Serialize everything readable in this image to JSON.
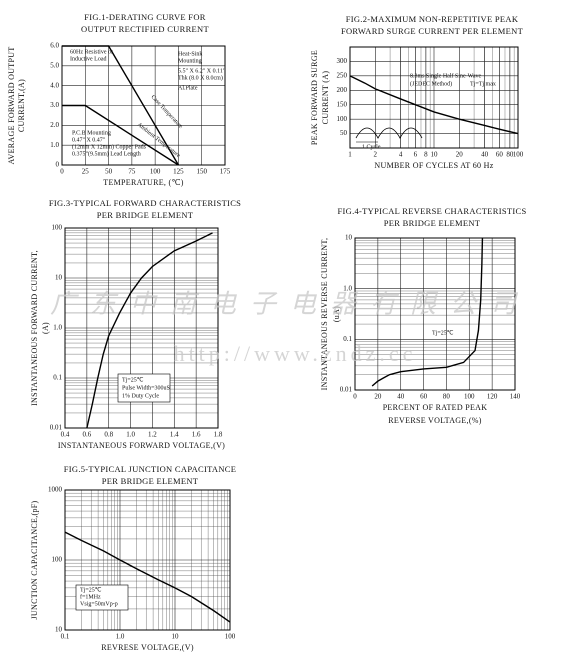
{
  "chart_data": [
    {
      "type": "line",
      "title": "FIG.1-DERATING CURVE FOR",
      "subtitle": "OUTPUT RECTIFIED CURRENT",
      "x_label": [
        "TEMPERATURE, (℃)"
      ],
      "y_label": [
        "AVERAGE FORWARD OUTPUT",
        "CURRENT,(A)"
      ],
      "xlim": [
        0,
        175
      ],
      "xticks": [
        0,
        25,
        50,
        75,
        100,
        125,
        150,
        175
      ],
      "ylim": [
        0,
        6
      ],
      "yticks": [
        0,
        {
          "value": 1,
          "label": "1.0"
        },
        {
          "value": 2,
          "label": "2.0"
        },
        {
          "value": 3,
          "label": "3.0"
        },
        {
          "value": 4,
          "label": "4.0"
        },
        {
          "value": 5,
          "label": "5.0"
        },
        {
          "value": 6,
          "label": "6.0"
        }
      ],
      "grid": true,
      "series": [
        {
          "color": "#000000",
          "x": [
            0,
            50,
            125
          ],
          "values": [
            6,
            6,
            0
          ]
        },
        {
          "color": "#000000",
          "x": [
            0,
            25,
            125
          ],
          "values": [
            3,
            3,
            0
          ]
        }
      ],
      "annotations": [
        "60Hz Resistive or",
        "Inductive Load",
        "Heat-Sink",
        "Mounting",
        "5.5\" X 6.2\" X 0.11\"",
        "Thk (8.0 X 8.0cm)",
        "Al.Plate",
        "Case Temperature",
        "Ambient Temperature",
        "P.C.B Mounting",
        "0.47\" X 0.47\"",
        "(12mm X 12mm) Copper Pads",
        "0.375\"(9.5mm) Lead Length"
      ]
    },
    {
      "type": "line",
      "title": "FIG.2-MAXIMUM NON-REPETITIVE PEAK",
      "subtitle": "FORWARD SURGE CURRENT PER ELEMENT",
      "x_label": [
        "NUMBER OF CYCLES AT 60 Hz"
      ],
      "y_label": [
        "PEAK FORWARD SURGE",
        "CURRENT (A)"
      ],
      "xscale": "log",
      "xlim": [
        1,
        100
      ],
      "xticks": [
        1,
        2,
        4,
        6,
        8,
        10,
        20,
        40,
        60,
        80,
        100
      ],
      "ylim": [
        0,
        350
      ],
      "yticks": [
        50,
        100,
        150,
        200,
        250,
        300
      ],
      "grid": true,
      "series": [
        {
          "color": "#000000",
          "x": [
            1,
            1.5,
            2,
            4,
            6,
            10,
            20,
            40,
            60,
            100
          ],
          "values": [
            250,
            225,
            205,
            170,
            150,
            125,
            100,
            78,
            65,
            50
          ]
        }
      ],
      "annotations": [
        "8.3ms Single Half Sine-Wave",
        "(JEDEC Method)",
        "Tj=Tj max",
        "1 Cycle"
      ]
    },
    {
      "type": "line",
      "title": "FIG.3-TYPICAL FORWARD CHARACTERISTICS",
      "subtitle": "PER BRIDGE ELEMENT",
      "x_label": [
        "INSTANTANEOUS FORWARD VOLTAGE,(V)"
      ],
      "y_label": [
        "INSTANTANEOUS FORWARD CURRENT,",
        "(A)"
      ],
      "xlim": [
        0.4,
        1.8
      ],
      "xticks": [
        0.4,
        0.6,
        0.8,
        {
          "value": 1,
          "label": "1.0"
        },
        1.2,
        1.4,
        1.6,
        1.8
      ],
      "yscale": "log",
      "ylim": [
        0.01,
        100
      ],
      "yticks": [
        0.01,
        0.1,
        {
          "value": 1,
          "label": "1.0"
        },
        10,
        100
      ],
      "grid": true,
      "series": [
        {
          "color": "#000000",
          "x": [
            0.6,
            0.65,
            0.7,
            0.75,
            0.8,
            0.9,
            1.0,
            1.1,
            1.2,
            1.4,
            1.6,
            1.75
          ],
          "values": [
            0.01,
            0.03,
            0.1,
            0.3,
            0.7,
            2,
            5,
            10,
            17,
            35,
            55,
            80
          ]
        }
      ],
      "annotations": [
        "Tj=25℃",
        "Pulse Width=300uS",
        "1% Duty Cycle"
      ]
    },
    {
      "type": "line",
      "title": "FIG.4-TYPICAL REVERSE CHARACTERISTICS",
      "subtitle": "PER BRIDGE ELEMENT",
      "x_label": [
        "PERCENT OF RATED PEAK",
        "REVERSE VOLTAGE,(%)"
      ],
      "y_label": [
        "INSTANTANEOUS REVERSE CURRENT,",
        "(uA)"
      ],
      "xlim": [
        0,
        140
      ],
      "xticks": [
        0,
        20,
        40,
        60,
        80,
        100,
        120,
        140
      ],
      "yscale": "log",
      "ylim": [
        0.01,
        10
      ],
      "yticks": [
        0.01,
        0.1,
        {
          "value": 1,
          "label": "1.0"
        },
        10
      ],
      "grid": true,
      "series": [
        {
          "color": "#000000",
          "x": [
            15,
            20,
            30,
            40,
            60,
            80,
            95,
            105,
            108,
            110,
            111,
            111.5
          ],
          "values": [
            0.012,
            0.015,
            0.02,
            0.023,
            0.026,
            0.028,
            0.035,
            0.06,
            0.15,
            0.6,
            3,
            10
          ]
        }
      ],
      "annotations": [
        "Tj=25℃"
      ]
    },
    {
      "type": "line",
      "title": "FIG.5-TYPICAL JUNCTION CAPACITANCE",
      "subtitle": "PER BRIDGE ELEMENT",
      "x_label": [
        "REVRESE VOLTAGE,(V)"
      ],
      "y_label": [
        "JUNCTION CAPACITANCE,(pF)"
      ],
      "xscale": "log",
      "xlim": [
        0.1,
        100
      ],
      "xticks": [
        0.1,
        {
          "value": 1,
          "label": "1.0"
        },
        10,
        100
      ],
      "yscale": "log",
      "ylim": [
        10,
        1000
      ],
      "yticks": [
        10,
        100,
        1000
      ],
      "grid": true,
      "series": [
        {
          "color": "#000000",
          "x": [
            0.1,
            0.2,
            0.5,
            1,
            2,
            5,
            10,
            20,
            50,
            100
          ],
          "values": [
            250,
            190,
            135,
            100,
            75,
            52,
            40,
            30,
            19,
            13
          ]
        }
      ],
      "annotations": [
        "Tj=25℃",
        "f=1MHz",
        "Vsig=50mVp-p"
      ]
    }
  ],
  "watermark": {
    "company": "广东中南电子电器有限公司",
    "url": "http://www.zndz.cc"
  }
}
